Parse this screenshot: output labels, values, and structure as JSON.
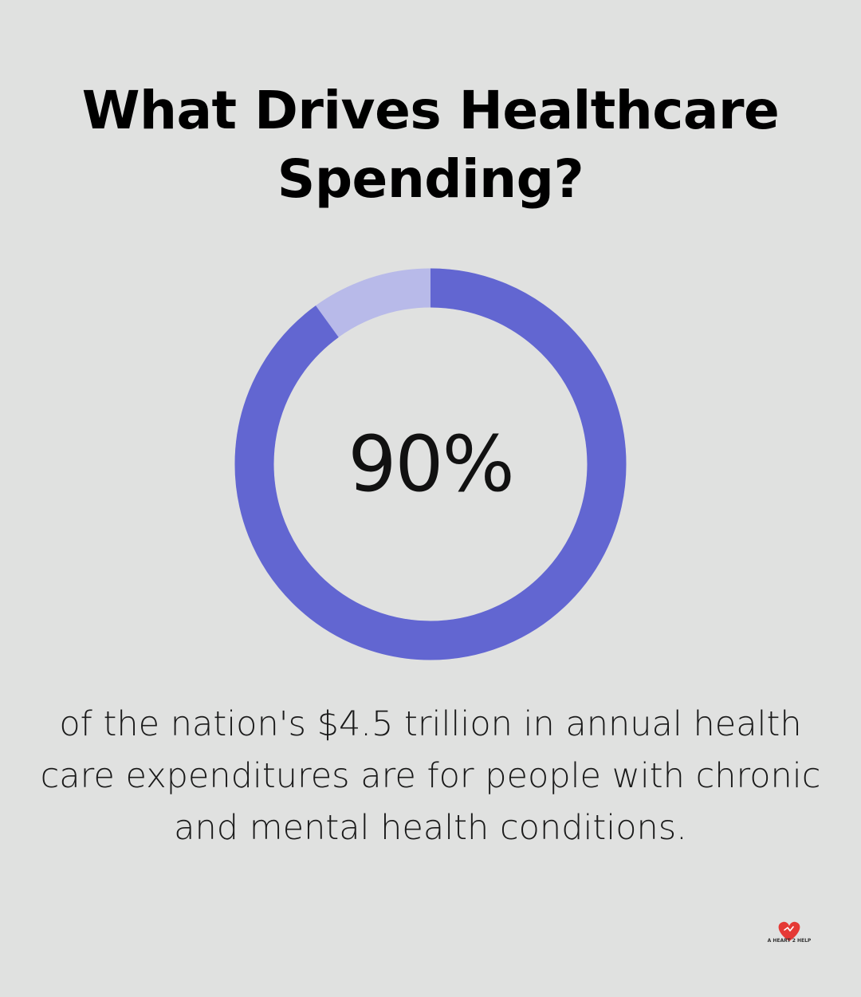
{
  "title": "What Drives Healthcare Spending?",
  "chart_data": {
    "type": "pie",
    "subtype": "donut",
    "value_percent": 90,
    "center_label": "90%",
    "caption": "of the nation's $4.5 trillion in annual health care expenditures are for people with chronic and mental health conditions.",
    "colors": {
      "primary": "#6266d1",
      "remainder": "#b8bae9"
    }
  },
  "logo": {
    "text": "A HEART 2 HELP",
    "icon": "heart-hands-icon",
    "color": "#e53935"
  }
}
